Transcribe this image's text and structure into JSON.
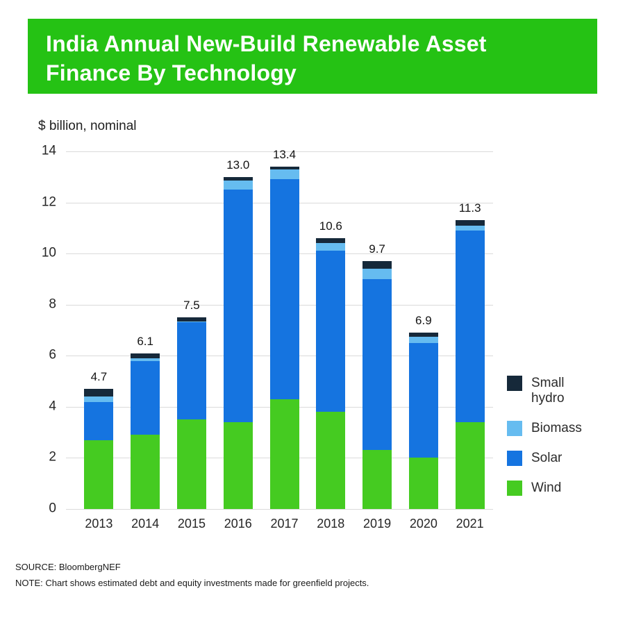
{
  "header": {
    "title_line1": "India Annual New-Build Renewable Asset",
    "title_line2": "Finance By Technology",
    "bg_color": "#25c214"
  },
  "chart_data": {
    "type": "bar",
    "stacked": true,
    "unit_label": "$ billion, nominal",
    "categories": [
      "2013",
      "2014",
      "2015",
      "2016",
      "2017",
      "2018",
      "2019",
      "2020",
      "2021"
    ],
    "series": [
      {
        "name": "Wind",
        "color": "#45cb21",
        "values": [
          2.7,
          2.9,
          3.5,
          3.4,
          4.3,
          3.8,
          2.3,
          2.0,
          3.4
        ]
      },
      {
        "name": "Solar",
        "color": "#1574e0",
        "values": [
          1.5,
          2.9,
          3.8,
          9.1,
          8.6,
          6.3,
          6.7,
          4.5,
          7.5
        ]
      },
      {
        "name": "Biomass",
        "color": "#66bcf0",
        "values": [
          0.2,
          0.1,
          0.05,
          0.35,
          0.4,
          0.3,
          0.4,
          0.25,
          0.2
        ]
      },
      {
        "name": "Small hydro",
        "color": "#16293a",
        "values": [
          0.3,
          0.2,
          0.15,
          0.15,
          0.1,
          0.2,
          0.3,
          0.15,
          0.2
        ]
      }
    ],
    "totals": [
      4.7,
      6.1,
      7.5,
      13.0,
      13.4,
      10.6,
      9.7,
      6.9,
      11.3
    ],
    "totals_display": [
      "4.7",
      "6.1",
      "7.5",
      "13.0",
      "13.4",
      "10.6",
      "9.7",
      "6.9",
      "11.3"
    ],
    "ylim": [
      0,
      14
    ],
    "ytick_step": 2,
    "grid": true,
    "legend_position": "right"
  },
  "legend": {
    "items": [
      {
        "label": "Small hydro",
        "color": "#16293a"
      },
      {
        "label": "Biomass",
        "color": "#66bcf0"
      },
      {
        "label": "Solar",
        "color": "#1574e0"
      },
      {
        "label": "Wind",
        "color": "#45cb21"
      }
    ]
  },
  "footer": {
    "source": "SOURCE: BloombergNEF",
    "note": "NOTE: Chart shows estimated debt and equity investments made for greenfield projects."
  }
}
